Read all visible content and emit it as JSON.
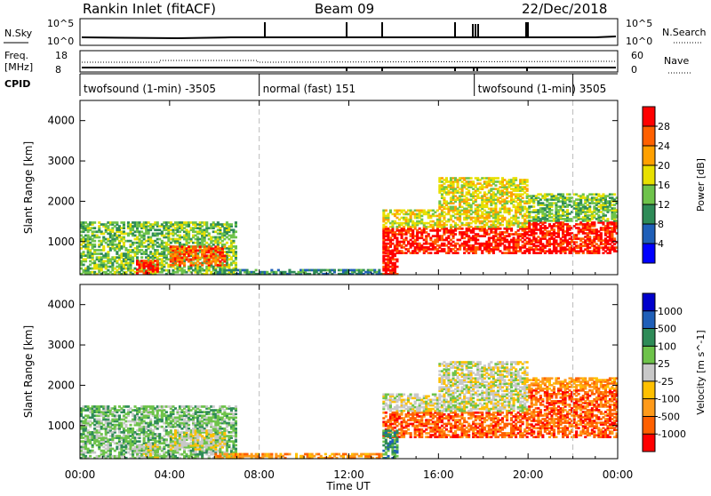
{
  "header": {
    "station": "Rankin Inlet (fitACF)",
    "beam": "Beam 09",
    "date": "22/Dec/2018"
  },
  "strips": {
    "nsky_label": "N.Sky",
    "nsky_ticks": [
      "10^5",
      "10^0"
    ],
    "nsearch_label": "N.Search",
    "nsearch_ticks": [
      "10^5",
      "10^0"
    ],
    "freq_label_1": "Freq.",
    "freq_label_2": "[MHz]",
    "freq_ticks": [
      "18",
      "8"
    ],
    "nave_label": "Nave",
    "nave_ticks": [
      "60",
      "0"
    ],
    "cpid_label": "CPID",
    "cpid_segments": [
      {
        "start_hour": 0,
        "end_hour": 8,
        "label": "twofsound (1-min) -3505"
      },
      {
        "start_hour": 8,
        "end_hour": 17.6,
        "label": "normal (fast) 151"
      },
      {
        "start_hour": 17.6,
        "end_hour": 22,
        "label": "twofsound (1-min) 3505"
      }
    ]
  },
  "chart_data": [
    {
      "type": "heatmap",
      "name": "Power",
      "ylabel": "Slant Range [km]",
      "xlabel": "Time UT",
      "ylim": [
        180,
        4500
      ],
      "xlim_hours": [
        0,
        24
      ],
      "y_ticks": [
        "1000",
        "2000",
        "3000",
        "4000"
      ],
      "x_ticks": [
        "00:00",
        "04:00",
        "08:00",
        "12:00",
        "16:00",
        "20:00",
        "00:00"
      ],
      "colorbar_label": "Power [dB]",
      "colorbar_ticks": [
        "28",
        "24",
        "20",
        "16",
        "12",
        "8",
        "4"
      ],
      "colorbar_colors": [
        "#0000ff",
        "#1f5fb8",
        "#2e8b57",
        "#6ec34a",
        "#e8e000",
        "#ffa000",
        "#ff6000",
        "#ff0000"
      ],
      "regions": [
        {
          "t0": 0.0,
          "t1": 7.0,
          "r0": 180,
          "r1": 1500,
          "level": 3
        },
        {
          "t0": 2.5,
          "t1": 3.5,
          "r0": 200,
          "r1": 550,
          "level": 7
        },
        {
          "t0": 4.0,
          "t1": 6.5,
          "r0": 400,
          "r1": 900,
          "level": 6
        },
        {
          "t0": 6.0,
          "t1": 13.5,
          "r0": 180,
          "r1": 320,
          "level": 2
        },
        {
          "t0": 13.5,
          "t1": 20.0,
          "r0": 700,
          "r1": 1350,
          "level": 7
        },
        {
          "t0": 13.5,
          "t1": 20.0,
          "r0": 1350,
          "r1": 1800,
          "level": 4
        },
        {
          "t0": 16.0,
          "t1": 20.0,
          "r0": 1800,
          "r1": 2600,
          "level": 4
        },
        {
          "t0": 20.0,
          "t1": 24.0,
          "r0": 700,
          "r1": 1500,
          "level": 7
        },
        {
          "t0": 20.0,
          "t1": 24.0,
          "r0": 1500,
          "r1": 2200,
          "level": 3
        },
        {
          "t0": 13.5,
          "t1": 14.2,
          "r0": 180,
          "r1": 900,
          "level": 7
        }
      ]
    },
    {
      "type": "heatmap",
      "name": "Velocity",
      "ylabel": "Slant Range [km]",
      "xlabel": "Time UT",
      "ylim": [
        180,
        4500
      ],
      "xlim_hours": [
        0,
        24
      ],
      "y_ticks": [
        "1000",
        "2000",
        "3000",
        "4000"
      ],
      "x_ticks": [
        "00:00",
        "04:00",
        "08:00",
        "12:00",
        "16:00",
        "20:00",
        "00:00"
      ],
      "colorbar_label": "Velocity [m s^-1]",
      "colorbar_ticks": [
        "1000",
        "500",
        "100",
        "25",
        "-25",
        "-100",
        "-500",
        "-1000"
      ],
      "colorbar_colors": [
        "#ff0000",
        "#ff6000",
        "#ff9a1a",
        "#ffc000",
        "#c8c8c8",
        "#6ec34a",
        "#2e8b57",
        "#1f5fb8",
        "#0000cc"
      ],
      "regions": [
        {
          "t0": 0.0,
          "t1": 7.0,
          "r0": 180,
          "r1": 1500,
          "level": 5
        },
        {
          "t0": 2.5,
          "t1": 3.5,
          "r0": 200,
          "r1": 550,
          "level": 4
        },
        {
          "t0": 4.0,
          "t1": 6.5,
          "r0": 400,
          "r1": 900,
          "level": 4
        },
        {
          "t0": 6.0,
          "t1": 13.5,
          "r0": 180,
          "r1": 320,
          "level": 2
        },
        {
          "t0": 13.5,
          "t1": 20.0,
          "r0": 700,
          "r1": 1350,
          "level": 1
        },
        {
          "t0": 13.5,
          "t1": 20.0,
          "r0": 1350,
          "r1": 1800,
          "level": 4
        },
        {
          "t0": 16.0,
          "t1": 20.0,
          "r0": 1800,
          "r1": 2600,
          "level": 4
        },
        {
          "t0": 20.0,
          "t1": 24.0,
          "r0": 700,
          "r1": 1900,
          "level": 1
        },
        {
          "t0": 20.0,
          "t1": 24.0,
          "r0": 1900,
          "r1": 2200,
          "level": 2
        },
        {
          "t0": 13.5,
          "t1": 14.2,
          "r0": 180,
          "r1": 900,
          "level": 6
        }
      ]
    }
  ]
}
